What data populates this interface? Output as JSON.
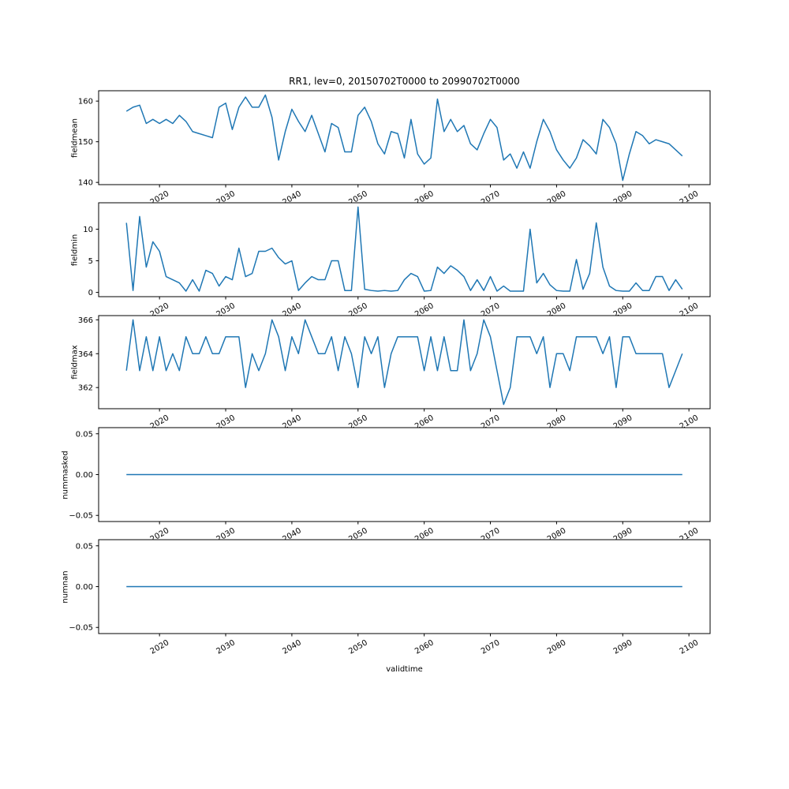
{
  "figure": {
    "title": "RR1, lev=0, 20150702T0000 to 20990702T0000",
    "xlabel": "validtime",
    "line_color": "#1f77b4",
    "frame_color": "#000000",
    "background": "#ffffff"
  },
  "chart_data": {
    "type": "line",
    "title": "RR1, lev=0, 20150702T0000 to 20990702T0000",
    "xlabel": "validtime",
    "legend": "none",
    "grid": false,
    "x_start": 2015,
    "x_end": 2099,
    "x_step": 1,
    "xlim": [
      2010.8,
      2103.2
    ],
    "xtick_values": [
      2020,
      2030,
      2040,
      2050,
      2060,
      2070,
      2080,
      2090,
      2100
    ],
    "xtick_labels": [
      "2020",
      "2030",
      "2040",
      "2050",
      "2060",
      "2070",
      "2080",
      "2090",
      "2100"
    ],
    "subplots": [
      {
        "ylabel": "fieldmean",
        "ylim": [
          139.45,
          162.55
        ],
        "ytick_values": [
          140,
          150,
          160
        ],
        "ytick_labels": [
          "140",
          "150",
          "160"
        ],
        "values": [
          157.5,
          158.5,
          159,
          154.5,
          155.5,
          154.5,
          155.5,
          154.5,
          156.5,
          155,
          152.5,
          152,
          151.5,
          151,
          158.5,
          159.5,
          153,
          158.5,
          161,
          158.5,
          158.5,
          161.5,
          156,
          145.5,
          152.5,
          158,
          155,
          152.5,
          156.5,
          152,
          147.5,
          154.5,
          153.5,
          147.5,
          147.5,
          156.5,
          158.5,
          155,
          149.5,
          147,
          152.5,
          152,
          146,
          155.5,
          147,
          144.5,
          146,
          160.5,
          152.5,
          155.5,
          152.5,
          154,
          149.5,
          148,
          152,
          155.5,
          153.5,
          145.5,
          147,
          143.5,
          147.5,
          143.5,
          150,
          155.5,
          152.5,
          148,
          145.5,
          143.5,
          146,
          150.5,
          149,
          147,
          155.5,
          153.5,
          149.5,
          140.5,
          147,
          152.5,
          151.5,
          149.5,
          150.5,
          150,
          149.5,
          148,
          146.5
        ]
      },
      {
        "ylabel": "fieldmin",
        "ylim": [
          -0.675,
          14.175
        ],
        "ytick_values": [
          0,
          5,
          10
        ],
        "ytick_labels": [
          "0",
          "5",
          "10"
        ],
        "values": [
          11,
          0.3,
          12,
          4,
          8,
          6.5,
          2.5,
          2,
          1.5,
          0.2,
          2,
          0.2,
          3.5,
          3,
          1,
          2.5,
          2,
          7,
          2.5,
          3,
          6.5,
          6.5,
          7,
          5.5,
          4.5,
          5,
          0.3,
          1.5,
          2.5,
          2,
          2,
          5,
          5,
          0.3,
          0.3,
          13.5,
          0.5,
          0.3,
          0.2,
          0.3,
          0.2,
          0.3,
          2,
          3,
          2.5,
          0.2,
          0.3,
          4,
          3,
          4.2,
          3.5,
          2.5,
          0.3,
          2,
          0.3,
          2.5,
          0.2,
          1,
          0.2,
          0.2,
          0.2,
          10,
          1.5,
          3,
          1.2,
          0.3,
          0.2,
          0.2,
          5.2,
          0.5,
          3,
          11,
          4,
          1,
          0.3,
          0.2,
          0.2,
          1.5,
          0.3,
          0.3,
          2.5,
          2.5,
          0.3,
          2,
          0.5
        ]
      },
      {
        "ylabel": "fieldmax",
        "ylim": [
          360.75,
          366.25
        ],
        "ytick_values": [
          362,
          364,
          366
        ],
        "ytick_labels": [
          "362",
          "364",
          "366"
        ],
        "values": [
          363,
          366,
          363,
          365,
          363,
          365,
          363,
          364,
          363,
          365,
          364,
          364,
          365,
          364,
          364,
          365,
          365,
          365,
          362,
          364,
          363,
          364,
          366,
          365,
          363,
          365,
          364,
          366,
          365,
          364,
          364,
          365,
          363,
          365,
          364,
          362,
          365,
          364,
          365,
          362,
          364,
          365,
          365,
          365,
          365,
          363,
          365,
          363,
          365,
          363,
          363,
          366,
          363,
          364,
          366,
          365,
          363,
          361,
          362,
          365,
          365,
          365,
          364,
          365,
          362,
          364,
          364,
          363,
          365,
          365,
          365,
          365,
          364,
          365,
          362,
          365,
          365,
          364,
          364,
          364,
          364,
          364,
          362,
          363,
          364
        ]
      },
      {
        "ylabel": "nummasked",
        "ylim": [
          -0.0575,
          0.0575
        ],
        "ytick_values": [
          0.05,
          0,
          -0.05
        ],
        "ytick_labels": [
          "0.05",
          "0.00",
          "−0.05"
        ],
        "constant_value": 0,
        "n_points": 85
      },
      {
        "ylabel": "numnan",
        "ylim": [
          -0.0575,
          0.0575
        ],
        "ytick_values": [
          0.05,
          0,
          -0.05
        ],
        "ytick_labels": [
          "0.05",
          "0.00",
          "−0.05"
        ],
        "constant_value": 0,
        "n_points": 85
      }
    ]
  }
}
